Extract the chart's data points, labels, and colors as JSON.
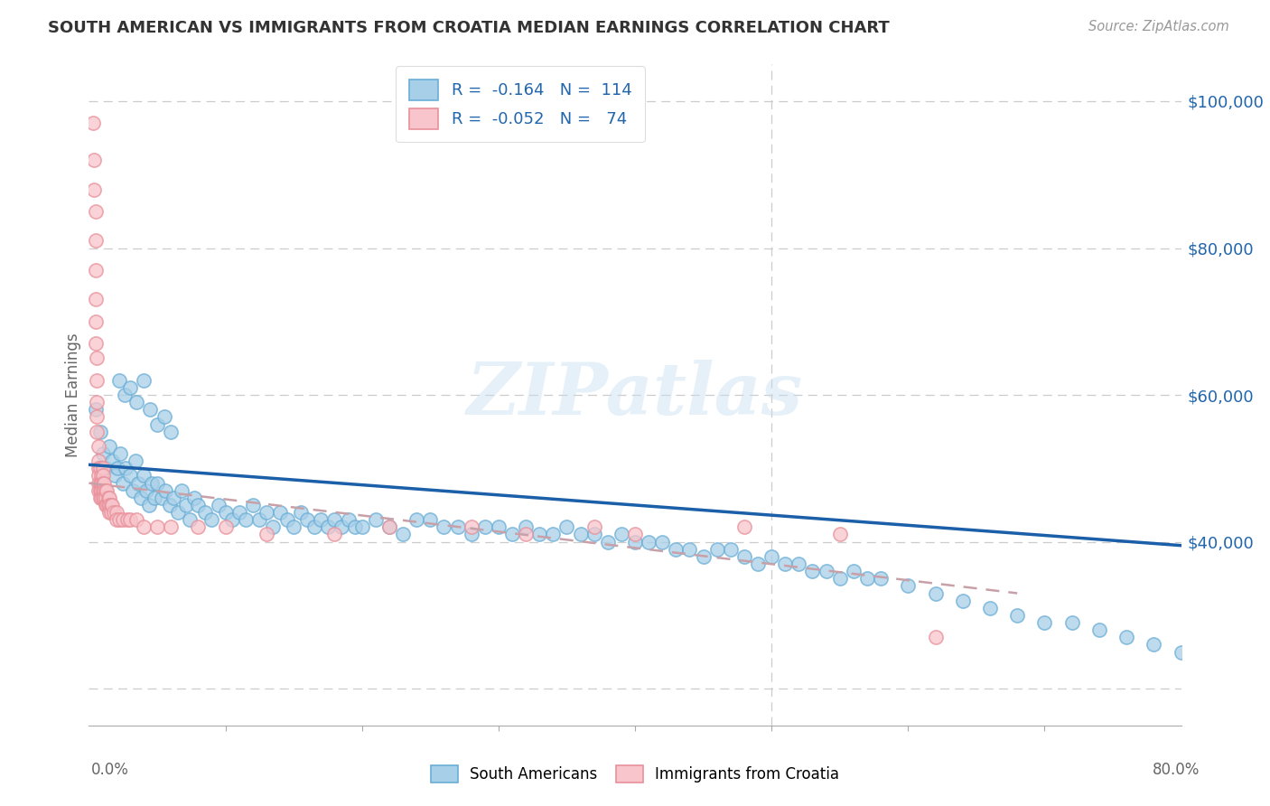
{
  "title": "SOUTH AMERICAN VS IMMIGRANTS FROM CROATIA MEDIAN EARNINGS CORRELATION CHART",
  "source": "Source: ZipAtlas.com",
  "ylabel": "Median Earnings",
  "watermark": "ZIPatlas",
  "blue_color": "#a8cfe8",
  "blue_edge": "#6aaed6",
  "pink_color": "#f7c5cb",
  "pink_edge": "#e8909a",
  "trend_blue": "#1a5fa8",
  "trend_pink": "#c8a0a8",
  "xmin": 0.0,
  "xmax": 0.8,
  "ymin": 15000,
  "ymax": 105000,
  "blue_x": [
    0.005,
    0.008,
    0.01,
    0.012,
    0.015,
    0.017,
    0.019,
    0.021,
    0.023,
    0.025,
    0.027,
    0.03,
    0.032,
    0.034,
    0.036,
    0.038,
    0.04,
    0.042,
    0.044,
    0.046,
    0.048,
    0.05,
    0.053,
    0.056,
    0.059,
    0.062,
    0.065,
    0.068,
    0.071,
    0.074,
    0.077,
    0.08,
    0.085,
    0.09,
    0.095,
    0.1,
    0.105,
    0.11,
    0.115,
    0.12,
    0.125,
    0.13,
    0.135,
    0.14,
    0.145,
    0.15,
    0.155,
    0.16,
    0.165,
    0.17,
    0.175,
    0.18,
    0.185,
    0.19,
    0.195,
    0.2,
    0.21,
    0.22,
    0.23,
    0.24,
    0.25,
    0.26,
    0.27,
    0.28,
    0.29,
    0.3,
    0.31,
    0.32,
    0.33,
    0.34,
    0.35,
    0.36,
    0.37,
    0.38,
    0.39,
    0.4,
    0.41,
    0.42,
    0.43,
    0.44,
    0.45,
    0.46,
    0.47,
    0.48,
    0.49,
    0.5,
    0.51,
    0.52,
    0.53,
    0.54,
    0.55,
    0.56,
    0.57,
    0.58,
    0.6,
    0.62,
    0.64,
    0.66,
    0.68,
    0.7,
    0.72,
    0.74,
    0.76,
    0.78,
    0.8,
    0.022,
    0.026,
    0.03,
    0.035,
    0.04,
    0.045,
    0.05,
    0.055,
    0.06
  ],
  "blue_y": [
    58000,
    55000,
    52000,
    50000,
    53000,
    51000,
    49000,
    50000,
    52000,
    48000,
    50000,
    49000,
    47000,
    51000,
    48000,
    46000,
    49000,
    47000,
    45000,
    48000,
    46000,
    48000,
    46000,
    47000,
    45000,
    46000,
    44000,
    47000,
    45000,
    43000,
    46000,
    45000,
    44000,
    43000,
    45000,
    44000,
    43000,
    44000,
    43000,
    45000,
    43000,
    44000,
    42000,
    44000,
    43000,
    42000,
    44000,
    43000,
    42000,
    43000,
    42000,
    43000,
    42000,
    43000,
    42000,
    42000,
    43000,
    42000,
    41000,
    43000,
    43000,
    42000,
    42000,
    41000,
    42000,
    42000,
    41000,
    42000,
    41000,
    41000,
    42000,
    41000,
    41000,
    40000,
    41000,
    40000,
    40000,
    40000,
    39000,
    39000,
    38000,
    39000,
    39000,
    38000,
    37000,
    38000,
    37000,
    37000,
    36000,
    36000,
    35000,
    36000,
    35000,
    35000,
    34000,
    33000,
    32000,
    31000,
    30000,
    29000,
    29000,
    28000,
    27000,
    26000,
    25000,
    62000,
    60000,
    61000,
    59000,
    62000,
    58000,
    56000,
    57000,
    55000
  ],
  "pink_x": [
    0.003,
    0.004,
    0.004,
    0.005,
    0.005,
    0.005,
    0.005,
    0.005,
    0.005,
    0.006,
    0.006,
    0.006,
    0.006,
    0.006,
    0.007,
    0.007,
    0.007,
    0.007,
    0.007,
    0.007,
    0.008,
    0.008,
    0.008,
    0.008,
    0.009,
    0.009,
    0.009,
    0.009,
    0.01,
    0.01,
    0.01,
    0.01,
    0.01,
    0.011,
    0.011,
    0.011,
    0.012,
    0.012,
    0.012,
    0.013,
    0.013,
    0.014,
    0.014,
    0.015,
    0.015,
    0.015,
    0.016,
    0.016,
    0.017,
    0.018,
    0.02,
    0.02,
    0.022,
    0.025,
    0.028,
    0.03,
    0.035,
    0.04,
    0.05,
    0.06,
    0.08,
    0.1,
    0.13,
    0.18,
    0.22,
    0.28,
    0.32,
    0.37,
    0.4,
    0.48,
    0.55,
    0.62
  ],
  "pink_y": [
    97000,
    92000,
    88000,
    85000,
    81000,
    77000,
    73000,
    70000,
    67000,
    65000,
    62000,
    59000,
    57000,
    55000,
    53000,
    51000,
    50000,
    49000,
    48000,
    47000,
    50000,
    48000,
    47000,
    46000,
    49000,
    48000,
    47000,
    46000,
    50000,
    49000,
    48000,
    47000,
    46000,
    48000,
    47000,
    46000,
    47000,
    46000,
    45000,
    47000,
    45000,
    46000,
    45000,
    46000,
    45000,
    44000,
    45000,
    44000,
    45000,
    44000,
    44000,
    43000,
    43000,
    43000,
    43000,
    43000,
    43000,
    42000,
    42000,
    42000,
    42000,
    42000,
    41000,
    41000,
    42000,
    42000,
    41000,
    42000,
    41000,
    42000,
    41000,
    27000
  ]
}
